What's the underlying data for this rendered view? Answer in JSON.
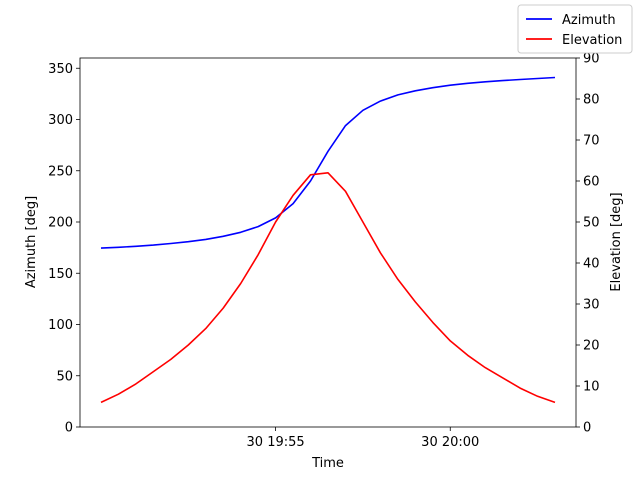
{
  "chart_data": {
    "type": "line",
    "xlabel": "Time",
    "ylabel_left": "Azimuth [deg]",
    "ylabel_right": "Elevation [deg]",
    "x_ticks": [
      {
        "label": "30 19:55",
        "minute": 5
      },
      {
        "label": "30 20:00",
        "minute": 10
      }
    ],
    "x_range_minutes": [
      -0.6,
      13.6
    ],
    "y_left": {
      "range": [
        0,
        360
      ],
      "ticks": [
        0,
        50,
        100,
        150,
        200,
        250,
        300,
        350
      ]
    },
    "y_right": {
      "range": [
        0,
        90
      ],
      "ticks": [
        0,
        10,
        20,
        30,
        40,
        50,
        60,
        70,
        80,
        90
      ]
    },
    "legend_position": "top-right",
    "grid": false,
    "series": [
      {
        "name": "Azimuth",
        "axis": "left",
        "color": "#0000ff",
        "x_minutes": [
          0,
          0.5,
          1,
          1.5,
          2,
          2.5,
          3,
          3.5,
          4,
          4.5,
          5,
          5.5,
          6,
          6.5,
          7,
          7.5,
          8,
          8.5,
          9,
          9.5,
          10,
          10.5,
          11,
          11.5,
          12,
          12.5,
          13
        ],
        "values": [
          174.5,
          175.3,
          176.3,
          177.5,
          179,
          180.8,
          183,
          186,
          190,
          195.5,
          204,
          218,
          240,
          269,
          294,
          309,
          318,
          324,
          328,
          331,
          333.5,
          335.3,
          336.8,
          338,
          339,
          340,
          341
        ]
      },
      {
        "name": "Elevation",
        "axis": "right",
        "color": "#ff0000",
        "x_minutes": [
          0,
          0.5,
          1,
          1.5,
          2,
          2.5,
          3,
          3.5,
          4,
          4.5,
          5,
          5.5,
          6,
          6.5,
          7,
          7.5,
          8,
          8.5,
          9,
          9.5,
          10,
          10.5,
          11,
          11.5,
          12,
          12.5,
          13
        ],
        "values": [
          6,
          8,
          10.5,
          13.5,
          16.5,
          20,
          24,
          29,
          35,
          42,
          50,
          56.5,
          61.5,
          62,
          57.5,
          50,
          42.5,
          36,
          30.5,
          25.5,
          21,
          17.5,
          14.5,
          12,
          9.5,
          7.5,
          6
        ]
      }
    ]
  }
}
